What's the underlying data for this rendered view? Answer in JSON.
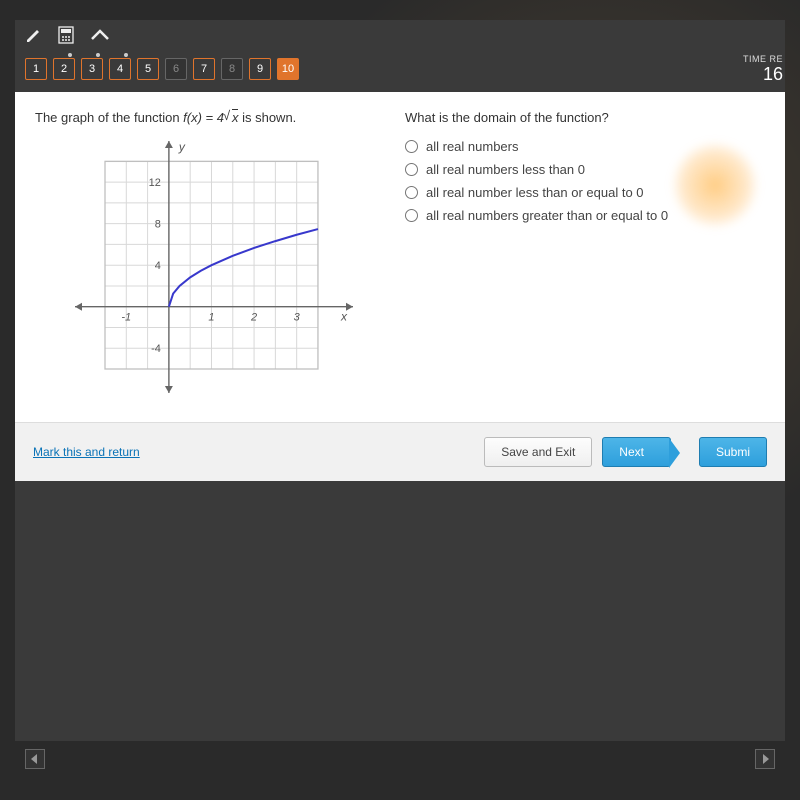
{
  "toolbar": {
    "pencil_icon": "pencil",
    "calculator_icon": "calculator",
    "collapse_icon": "chevron-up"
  },
  "nav": {
    "buttons": [
      {
        "n": "1",
        "active": true,
        "ticked": false
      },
      {
        "n": "2",
        "active": true,
        "ticked": true
      },
      {
        "n": "3",
        "active": true,
        "ticked": true
      },
      {
        "n": "4",
        "active": true,
        "ticked": true
      },
      {
        "n": "5",
        "active": true,
        "ticked": false
      },
      {
        "n": "6",
        "active": false,
        "ticked": false
      },
      {
        "n": "7",
        "active": true,
        "ticked": false
      },
      {
        "n": "8",
        "active": false,
        "ticked": false
      },
      {
        "n": "9",
        "active": true,
        "ticked": false
      },
      {
        "n": "10",
        "active": true,
        "current": true
      }
    ]
  },
  "timer": {
    "label": "TIME RE",
    "value": "16"
  },
  "question": {
    "left_text_pre": "The graph of the function ",
    "left_text_fn": "f(x) = 4√x",
    "left_text_post": " is shown.",
    "right_text": "What is the domain of the function?",
    "choices": [
      "all real numbers",
      "all real numbers less than 0",
      "all real number less than or equal to 0",
      "all real numbers greater than or equal to 0"
    ]
  },
  "graph": {
    "type": "line",
    "x_range": [
      -1.5,
      3.9
    ],
    "y_range": [
      -6,
      15
    ],
    "x_ticks": [
      -1,
      1,
      2,
      3
    ],
    "y_ticks": [
      -4,
      4,
      8,
      12
    ],
    "x_label": "x",
    "y_label": "y",
    "grid_color": "#d8d8d8",
    "axis_color": "#666666",
    "curve_color": "#3838cc",
    "curve_width": 2,
    "background": "#ffffff",
    "curve_points": [
      [
        0,
        0
      ],
      [
        0.1,
        1.26
      ],
      [
        0.25,
        2
      ],
      [
        0.5,
        2.83
      ],
      [
        0.75,
        3.46
      ],
      [
        1,
        4
      ],
      [
        1.5,
        4.9
      ],
      [
        2,
        5.66
      ],
      [
        2.5,
        6.32
      ],
      [
        3,
        6.93
      ],
      [
        3.5,
        7.48
      ]
    ]
  },
  "actions": {
    "mark_return": "Mark this and return",
    "save_exit": "Save and Exit",
    "next": "Next",
    "submit": "Submi"
  }
}
